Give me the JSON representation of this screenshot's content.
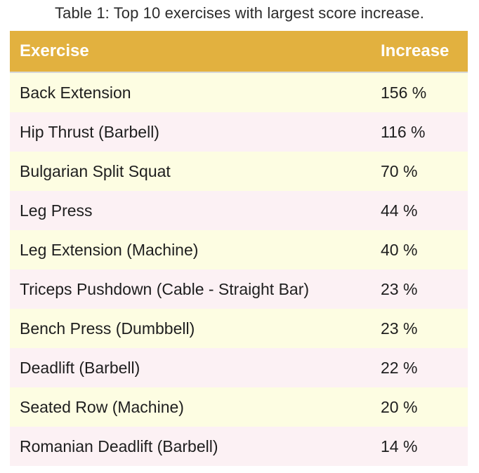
{
  "caption": "Table 1: Top 10 exercises with largest score increase.",
  "table": {
    "headers": {
      "exercise": "Exercise",
      "increase": "Increase"
    },
    "rows": [
      {
        "exercise": "Back Extension",
        "increase": "156 %"
      },
      {
        "exercise": "Hip Thrust (Barbell)",
        "increase": "116 %"
      },
      {
        "exercise": "Bulgarian Split Squat",
        "increase": "70 %"
      },
      {
        "exercise": "Leg Press",
        "increase": "44 %"
      },
      {
        "exercise": "Leg Extension (Machine)",
        "increase": "40 %"
      },
      {
        "exercise": "Triceps Pushdown (Cable - Straight Bar)",
        "increase": "23 %"
      },
      {
        "exercise": "Bench Press (Dumbbell)",
        "increase": "23 %"
      },
      {
        "exercise": "Deadlift (Barbell)",
        "increase": "22 %"
      },
      {
        "exercise": "Seated Row (Machine)",
        "increase": "20 %"
      },
      {
        "exercise": "Romanian Deadlift (Barbell)",
        "increase": "14 %"
      }
    ]
  },
  "colors": {
    "header_bg": "#e2b13f",
    "row_odd_bg": "#fdfde2",
    "row_even_bg": "#fcf1f4"
  }
}
